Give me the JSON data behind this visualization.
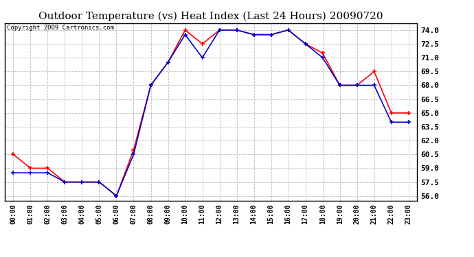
{
  "title": "Outdoor Temperature (vs) Heat Index (Last 24 Hours) 20090720",
  "copyright": "Copyright 2009 Cartronics.com",
  "x_labels": [
    "00:00",
    "01:00",
    "02:00",
    "03:00",
    "04:00",
    "05:00",
    "06:00",
    "07:00",
    "08:00",
    "09:00",
    "10:00",
    "11:00",
    "12:00",
    "13:00",
    "14:00",
    "15:00",
    "16:00",
    "17:00",
    "18:00",
    "19:00",
    "20:00",
    "21:00",
    "22:00",
    "23:00"
  ],
  "heat_index": [
    60.5,
    59.0,
    59.0,
    57.5,
    57.5,
    57.5,
    56.0,
    61.0,
    68.0,
    70.5,
    74.0,
    72.5,
    74.0,
    74.0,
    73.5,
    73.5,
    74.0,
    72.5,
    71.5,
    68.0,
    68.0,
    69.5,
    65.0,
    65.0
  ],
  "outdoor_temp": [
    58.5,
    58.5,
    58.5,
    57.5,
    57.5,
    57.5,
    56.0,
    60.5,
    68.0,
    70.5,
    73.5,
    71.0,
    74.0,
    74.0,
    73.5,
    73.5,
    74.0,
    72.5,
    71.0,
    68.0,
    68.0,
    68.0,
    64.0,
    64.0
  ],
  "heat_index_color": "#ff0000",
  "outdoor_temp_color": "#0000cc",
  "ylim_min": 55.5,
  "ylim_max": 74.75,
  "yticks": [
    56.0,
    57.5,
    59.0,
    60.5,
    62.0,
    63.5,
    65.0,
    66.5,
    68.0,
    69.5,
    71.0,
    72.5,
    74.0
  ],
  "background_color": "#ffffff",
  "plot_bg_color": "#ffffff",
  "grid_color": "#bbbbbb",
  "title_fontsize": 11,
  "copyright_fontsize": 6.5,
  "tick_fontsize": 7,
  "ytick_fontsize": 8
}
